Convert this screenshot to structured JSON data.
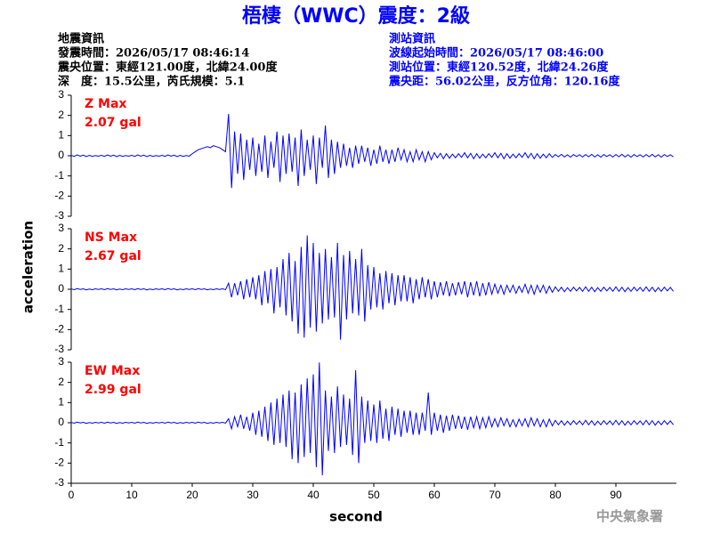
{
  "header": {
    "title": "梧棲（WWC）震度：2級",
    "left": [
      "地震資訊",
      "發震時間：2026/05/17 08:46:14",
      "震央位置：東經121.00度，北緯24.00度",
      "深　度：15.5公里，芮氏規模：5.1"
    ],
    "right": [
      "測站資訊",
      "波線起始時間：2026/05/17 08:46:00",
      "測站位置：東經120.52度，北緯24.26度",
      "震央距：56.02公里，反方位角：120.16度"
    ],
    "footer": "中央氣象署"
  },
  "chart_data": {
    "type": "line",
    "xlabel": "second",
    "ylabel": "acceleration",
    "xlim": [
      0,
      100
    ],
    "xticks": [
      0,
      10,
      20,
      30,
      40,
      50,
      60,
      70,
      80,
      90
    ],
    "ylim": [
      -3,
      3
    ],
    "yticks": [
      3,
      2,
      1,
      0,
      -1,
      -2,
      -3
    ],
    "label_color": "#ff0000",
    "x": [
      0,
      0.5,
      1,
      1.5,
      2,
      2.5,
      3,
      3.5,
      4,
      4.5,
      5,
      5.5,
      6,
      6.5,
      7,
      7.5,
      8,
      8.5,
      9,
      9.5,
      10,
      10.5,
      11,
      11.5,
      12,
      12.5,
      13,
      13.5,
      14,
      14.5,
      15,
      15.5,
      16,
      16.5,
      17,
      17.5,
      18,
      18.5,
      19,
      19.5,
      20,
      20.5,
      21,
      21.5,
      22,
      22.5,
      23,
      23.5,
      24,
      24.5,
      25,
      25.5,
      26,
      26.5,
      27,
      27.5,
      28,
      28.5,
      29,
      29.5,
      30,
      30.5,
      31,
      31.5,
      32,
      32.5,
      33,
      33.5,
      34,
      34.5,
      35,
      35.5,
      36,
      36.5,
      37,
      37.5,
      38,
      38.5,
      39,
      39.5,
      40,
      40.5,
      41,
      41.5,
      42,
      42.5,
      43,
      43.5,
      44,
      44.5,
      45,
      45.5,
      46,
      46.5,
      47,
      47.5,
      48,
      48.5,
      49,
      49.5,
      50,
      50.5,
      51,
      51.5,
      52,
      52.5,
      53,
      53.5,
      54,
      54.5,
      55,
      55.5,
      56,
      56.5,
      57,
      57.5,
      58,
      58.5,
      59,
      59.5,
      60,
      60.5,
      61,
      61.5,
      62,
      62.5,
      63,
      63.5,
      64,
      64.5,
      65,
      65.5,
      66,
      66.5,
      67,
      67.5,
      68,
      68.5,
      69,
      69.5,
      70,
      70.5,
      71,
      71.5,
      72,
      72.5,
      73,
      73.5,
      74,
      74.5,
      75,
      75.5,
      76,
      76.5,
      77,
      77.5,
      78,
      78.5,
      79,
      79.5,
      80,
      80.5,
      81,
      81.5,
      82,
      82.5,
      83,
      83.5,
      84,
      84.5,
      85,
      85.5,
      86,
      86.5,
      87,
      87.5,
      88,
      88.5,
      89,
      89.5,
      90,
      90.5,
      91,
      91.5,
      92,
      92.5,
      93,
      93.5,
      94,
      94.5,
      95,
      95.5,
      96,
      96.5,
      97,
      97.5,
      98,
      98.5,
      99,
      99.5
    ],
    "panels": [
      {
        "name": "Z Max",
        "max_label": "2.07 gal",
        "color": "#0000ff",
        "values": [
          0.02,
          -0.03,
          0.04,
          -0.02,
          0.03,
          -0.04,
          0.02,
          -0.03,
          0.01,
          -0.02,
          0.02,
          -0.03,
          0.04,
          -0.02,
          0.03,
          -0.04,
          0.02,
          -0.03,
          0.01,
          -0.02,
          0.02,
          -0.03,
          0.04,
          -0.02,
          0.03,
          -0.04,
          0.02,
          -0.03,
          0.01,
          -0.02,
          0.02,
          -0.03,
          0.04,
          -0.02,
          0.03,
          -0.04,
          0.02,
          -0.03,
          0.01,
          -0.02,
          0.1,
          0.2,
          0.3,
          0.35,
          0.4,
          0.45,
          0.4,
          0.5,
          0.45,
          0.4,
          0.3,
          0.2,
          2.07,
          -1.6,
          1.2,
          -0.9,
          1.1,
          -1.2,
          0.8,
          -0.7,
          0.9,
          -1.0,
          0.6,
          -0.8,
          1.0,
          -1.1,
          0.7,
          -0.6,
          1.2,
          -1.3,
          1.0,
          -0.9,
          1.1,
          -0.8,
          0.9,
          -1.5,
          1.3,
          -1.0,
          0.8,
          -0.7,
          1.0,
          -1.4,
          0.9,
          -0.6,
          1.5,
          -1.1,
          0.8,
          -0.9,
          0.7,
          -0.6,
          0.6,
          -0.5,
          0.4,
          -0.6,
          0.5,
          -0.4,
          0.5,
          -0.3,
          0.4,
          -0.5,
          0.3,
          -0.4,
          0.5,
          -0.3,
          0.3,
          -0.4,
          0.3,
          -0.3,
          0.4,
          -0.2,
          0.3,
          -0.3,
          0.2,
          -0.3,
          0.3,
          -0.2,
          0.2,
          -0.3,
          0.2,
          -0.2,
          0.15,
          -0.1,
          0.12,
          -0.15,
          0.1,
          -0.12,
          0.08,
          -0.1,
          0.1,
          -0.08,
          0.15,
          -0.1,
          0.12,
          -0.15,
          0.1,
          -0.12,
          0.08,
          -0.1,
          0.1,
          -0.08,
          0.15,
          -0.1,
          0.12,
          -0.15,
          0.1,
          -0.12,
          0.08,
          -0.1,
          0.1,
          -0.08,
          0.15,
          -0.1,
          0.12,
          -0.15,
          0.1,
          -0.12,
          0.08,
          -0.1,
          0.1,
          -0.08,
          0.06,
          -0.05,
          0.07,
          -0.06,
          0.05,
          -0.07,
          0.06,
          -0.04,
          0.05,
          -0.06,
          0.06,
          -0.05,
          0.07,
          -0.06,
          0.05,
          -0.07,
          0.06,
          -0.04,
          0.05,
          -0.06,
          0.06,
          -0.05,
          0.07,
          -0.06,
          0.05,
          -0.07,
          0.06,
          -0.04,
          0.05,
          -0.06,
          0.06,
          -0.05,
          0.07,
          -0.06,
          0.05,
          -0.07,
          0.06,
          -0.04,
          0.05,
          -0.06
        ]
      },
      {
        "name": "NS Max",
        "max_label": "2.67 gal",
        "color": "#0000ff",
        "values": [
          0.02,
          -0.02,
          0.03,
          -0.01,
          0.02,
          -0.03,
          0.01,
          -0.02,
          0.02,
          -0.01,
          0.02,
          -0.02,
          0.03,
          -0.01,
          0.02,
          -0.03,
          0.01,
          -0.02,
          0.02,
          -0.01,
          0.02,
          -0.02,
          0.03,
          -0.01,
          0.02,
          -0.03,
          0.01,
          -0.02,
          0.02,
          -0.01,
          0.02,
          -0.02,
          0.03,
          -0.01,
          0.02,
          -0.03,
          0.01,
          -0.02,
          0.02,
          -0.01,
          0.02,
          -0.02,
          0.03,
          -0.01,
          0.02,
          -0.03,
          0.01,
          -0.02,
          0.02,
          -0.01,
          0.02,
          -0.02,
          0.3,
          -0.4,
          0.3,
          -0.3,
          0.4,
          -0.5,
          0.5,
          -0.4,
          0.6,
          -0.5,
          0.7,
          -0.8,
          0.9,
          -0.7,
          1.0,
          -1.2,
          1.1,
          -0.9,
          1.5,
          -1.3,
          1.8,
          -1.6,
          1.4,
          -2.2,
          2.1,
          -2.4,
          2.67,
          -1.9,
          2.3,
          -2.1,
          1.8,
          -1.7,
          2.0,
          -1.5,
          1.6,
          -1.4,
          2.3,
          -2.5,
          1.7,
          -1.5,
          1.9,
          -1.2,
          1.5,
          -1.3,
          2.0,
          -1.6,
          1.2,
          -1.0,
          1.1,
          -0.9,
          0.8,
          -1.0,
          0.9,
          -0.7,
          0.8,
          -0.8,
          0.7,
          -0.6,
          0.7,
          -0.6,
          0.6,
          -0.7,
          0.5,
          -0.5,
          0.6,
          -0.4,
          0.5,
          -0.5,
          0.4,
          -0.4,
          0.35,
          -0.3,
          0.4,
          -0.35,
          0.3,
          -0.3,
          0.35,
          -0.25,
          0.4,
          -0.4,
          0.35,
          -0.3,
          0.4,
          -0.35,
          0.3,
          -0.3,
          0.35,
          -0.25,
          0.25,
          -0.2,
          0.2,
          -0.25,
          0.2,
          -0.15,
          0.2,
          -0.2,
          0.15,
          -0.15,
          0.25,
          -0.2,
          0.2,
          -0.25,
          0.2,
          -0.15,
          0.2,
          -0.2,
          0.15,
          -0.15,
          0.12,
          -0.1,
          0.1,
          -0.12,
          0.08,
          -0.1,
          0.1,
          -0.08,
          0.09,
          -0.1,
          0.12,
          -0.1,
          0.1,
          -0.12,
          0.08,
          -0.1,
          0.1,
          -0.08,
          0.09,
          -0.1,
          0.12,
          -0.1,
          0.1,
          -0.12,
          0.08,
          -0.1,
          0.1,
          -0.08,
          0.09,
          -0.1,
          0.12,
          -0.1,
          0.1,
          -0.12,
          0.08,
          -0.1,
          0.1,
          -0.08,
          0.09,
          -0.1
        ]
      },
      {
        "name": "EW Max",
        "max_label": "2.99 gal",
        "color": "#0000ff",
        "values": [
          0.02,
          -0.02,
          0.03,
          -0.01,
          0.02,
          -0.03,
          0.01,
          -0.02,
          0.02,
          -0.01,
          0.02,
          -0.02,
          0.03,
          -0.01,
          0.02,
          -0.03,
          0.01,
          -0.02,
          0.02,
          -0.01,
          0.02,
          -0.02,
          0.03,
          -0.01,
          0.02,
          -0.03,
          0.01,
          -0.02,
          0.02,
          -0.01,
          0.02,
          -0.02,
          0.03,
          -0.01,
          0.02,
          -0.03,
          0.01,
          -0.02,
          0.02,
          -0.01,
          0.02,
          -0.02,
          0.03,
          -0.01,
          0.02,
          -0.03,
          0.01,
          -0.02,
          0.02,
          -0.01,
          0.02,
          -0.02,
          0.2,
          -0.3,
          0.3,
          -0.2,
          0.4,
          -0.3,
          0.3,
          -0.4,
          0.5,
          -0.6,
          0.6,
          -0.7,
          0.8,
          -0.9,
          1.0,
          -1.1,
          1.2,
          -1.0,
          1.4,
          -1.2,
          1.6,
          -1.8,
          1.5,
          -2.0,
          1.9,
          -1.7,
          2.2,
          -1.5,
          2.4,
          -2.2,
          2.99,
          -2.6,
          1.6,
          -1.4,
          1.3,
          -1.5,
          1.8,
          -1.2,
          1.4,
          -1.1,
          1.2,
          -1.6,
          2.6,
          -2.0,
          1.3,
          -1.0,
          1.1,
          -0.9,
          0.9,
          -1.0,
          1.1,
          -0.8,
          0.7,
          -0.9,
          0.8,
          -0.6,
          0.7,
          -0.7,
          0.6,
          -0.5,
          0.6,
          -0.6,
          0.5,
          -0.6,
          0.5,
          -0.4,
          1.5,
          -0.6,
          0.5,
          -0.4,
          0.4,
          -0.5,
          0.35,
          -0.4,
          0.4,
          -0.3,
          0.35,
          -0.3,
          0.3,
          -0.35,
          0.3,
          -0.25,
          0.3,
          -0.3,
          0.25,
          -0.25,
          0.3,
          -0.2,
          0.2,
          -0.2,
          0.25,
          -0.15,
          0.2,
          -0.2,
          0.15,
          -0.2,
          0.18,
          -0.15,
          0.2,
          -0.2,
          0.25,
          -0.15,
          0.2,
          -0.2,
          0.15,
          -0.2,
          0.18,
          -0.15,
          0.12,
          -0.1,
          0.1,
          -0.12,
          0.08,
          -0.1,
          0.1,
          -0.08,
          0.09,
          -0.1,
          0.12,
          -0.1,
          0.1,
          -0.12,
          0.08,
          -0.1,
          0.1,
          -0.08,
          0.09,
          -0.1,
          0.12,
          -0.1,
          0.1,
          -0.12,
          0.08,
          -0.1,
          0.1,
          -0.08,
          0.09,
          -0.1,
          0.12,
          -0.1,
          0.1,
          -0.12,
          0.08,
          -0.1,
          0.1,
          -0.08,
          0.09,
          -0.1
        ]
      }
    ]
  }
}
